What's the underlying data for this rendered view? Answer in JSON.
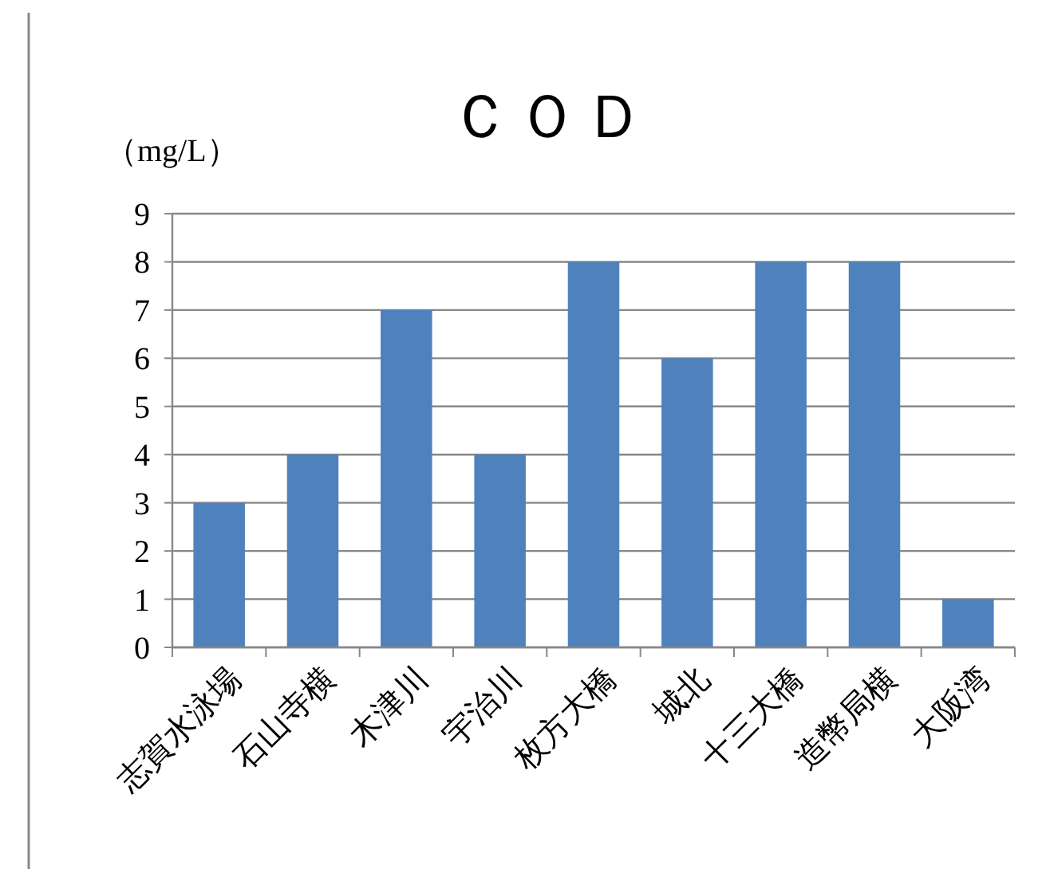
{
  "chart_data": {
    "type": "bar",
    "title": "ＣＯＤ",
    "ylabel": "（mg/L）",
    "categories": [
      "志賀水泳場",
      "石山寺横",
      "木津川",
      "宇治川",
      "枚方大橋",
      "城北",
      "十三大橋",
      "造幣局横",
      "大阪湾"
    ],
    "values": [
      3,
      4,
      7,
      4,
      8,
      6,
      8,
      8,
      1
    ],
    "color": "#4f81bd",
    "ylim": [
      0,
      9
    ],
    "yticks": [
      0,
      1,
      2,
      3,
      4,
      5,
      6,
      7,
      8,
      9
    ],
    "grid": "y"
  }
}
